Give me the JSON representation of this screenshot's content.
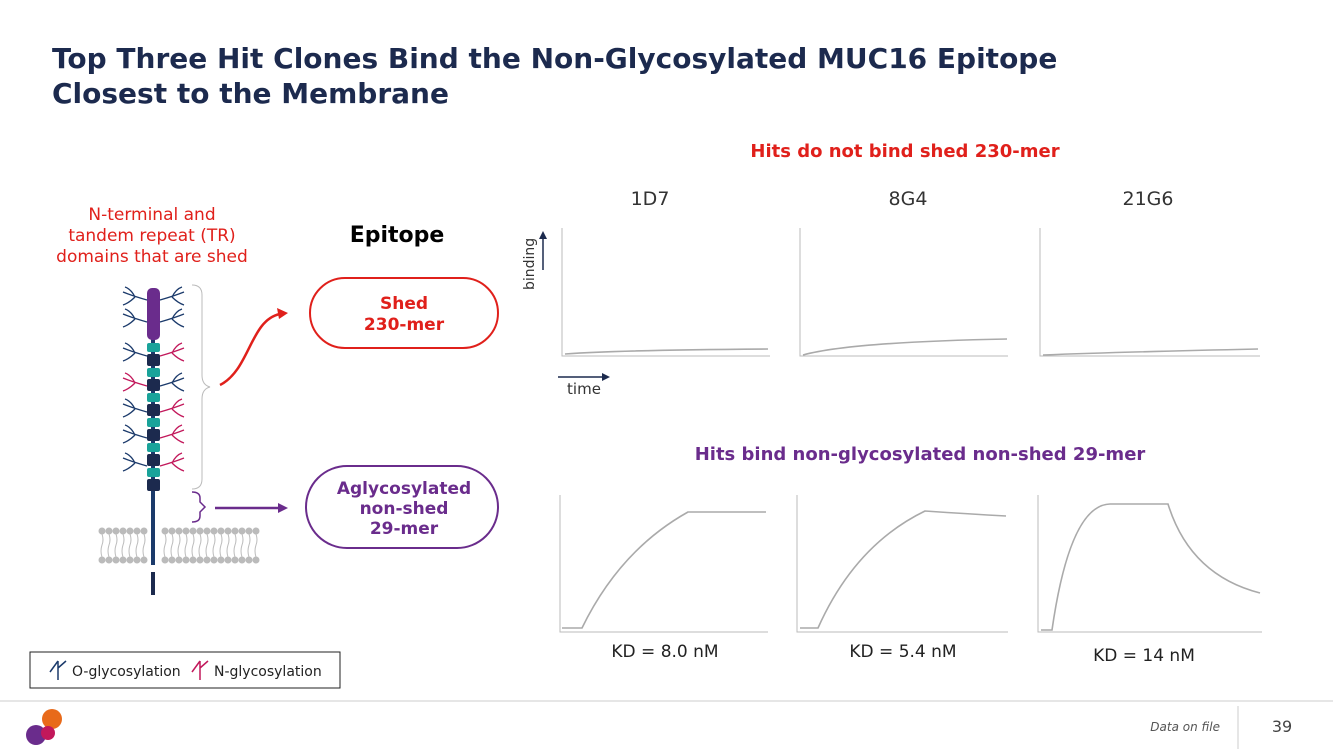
{
  "title": {
    "lines": [
      "Top Three Hit Clones Bind the Non-Glycosylated MUC16 Epitope",
      "Closest to the Membrane"
    ]
  },
  "shed_label": {
    "lines": [
      "N-terminal and",
      "tandem repeat (TR)",
      "domains that are shed"
    ]
  },
  "epitope_heading": "Epitope",
  "epitopes": [
    {
      "lines": [
        "Shed",
        "230-mer"
      ]
    },
    {
      "lines": [
        "Aglycosylated",
        "non-shed",
        "29-mer"
      ]
    }
  ],
  "panel_top": {
    "heading": "Hits do not bind shed 230-mer",
    "clones": [
      "1D7",
      "8G4",
      "21G6"
    ],
    "y_axis": "binding",
    "x_axis": "time"
  },
  "panel_bottom": {
    "heading": "Hits bind non-glycosylated non-shed 29-mer",
    "kd": [
      "KD = 8.0 nM",
      "KD = 5.4 nM",
      "KD = 14 nM"
    ]
  },
  "legend": [
    "O-glycosylation",
    "N-glycosylation"
  ],
  "footer": {
    "note": "Data on file",
    "page": "39"
  }
}
